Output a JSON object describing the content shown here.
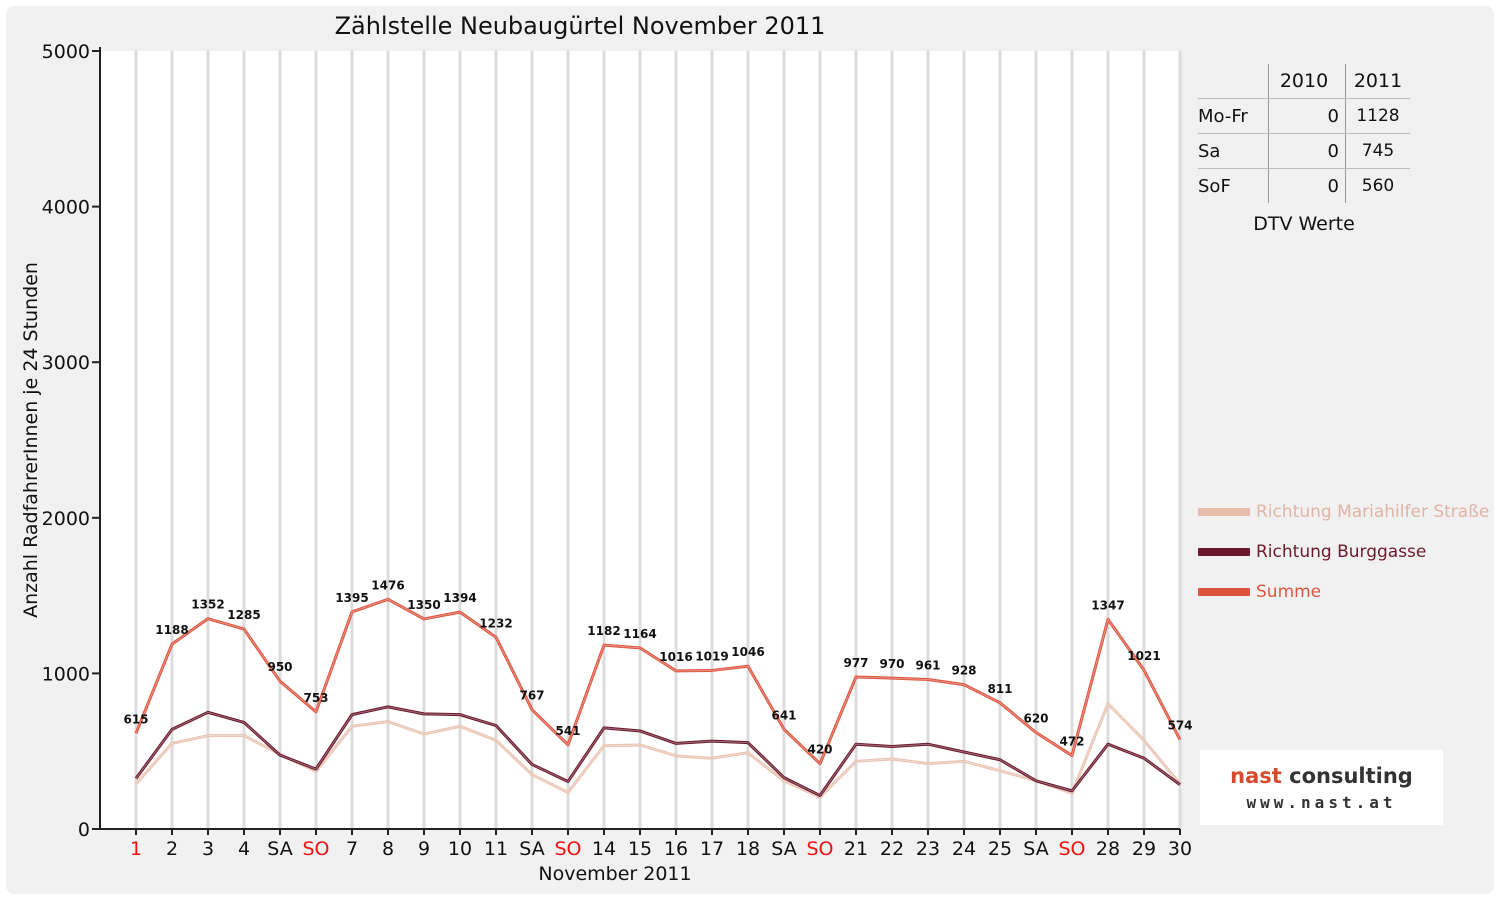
{
  "chart_data": {
    "type": "line",
    "title": "Zählstelle Neubaugürtel November 2011",
    "xlabel": "November 2011",
    "ylabel": "Anzahl RadfahrerInnen je 24 Stunden",
    "ylim": [
      0,
      5000
    ],
    "yticks": [
      "0",
      "1000",
      "2000",
      "3000",
      "4000",
      "5000"
    ],
    "grid": true,
    "legend_position": "right",
    "categories": [
      "1",
      "2",
      "3",
      "4",
      "SA",
      "SO",
      "7",
      "8",
      "9",
      "10",
      "11",
      "SA",
      "SO",
      "14",
      "15",
      "16",
      "17",
      "18",
      "SA",
      "SO",
      "21",
      "22",
      "23",
      "24",
      "25",
      "SA",
      "SO",
      "28",
      "29",
      "30"
    ],
    "red_categories": [
      "1",
      "SO"
    ],
    "series": [
      {
        "name": "Richtung Mariahilfer Straße",
        "color": "#e8bcaa",
        "values": [
          290,
          550,
          600,
          600,
          480,
          370,
          660,
          690,
          610,
          660,
          570,
          350,
          235,
          535,
          540,
          470,
          455,
          490,
          310,
          205,
          435,
          450,
          420,
          435,
          375,
          310,
          230,
          805,
          570,
          290
        ]
      },
      {
        "name": "Richtung Burggasse",
        "color": "#6b1a2e",
        "values": [
          325,
          640,
          750,
          685,
          475,
          385,
          735,
          785,
          740,
          735,
          665,
          415,
          305,
          650,
          630,
          550,
          565,
          555,
          330,
          215,
          545,
          530,
          545,
          495,
          445,
          310,
          245,
          545,
          455,
          285
        ]
      },
      {
        "name": "Summe",
        "color": "#dd5540",
        "values": [
          615,
          1188,
          1352,
          1285,
          950,
          753,
          1395,
          1476,
          1350,
          1394,
          1232,
          767,
          541,
          1182,
          1164,
          1016,
          1019,
          1046,
          641,
          420,
          977,
          970,
          961,
          928,
          811,
          620,
          472,
          1347,
          1021,
          574
        ]
      }
    ]
  },
  "dtv_table": {
    "caption": "DTV Werte",
    "headers": [
      "2010",
      "2011"
    ],
    "rows": [
      {
        "label": "Mo-Fr",
        "v2010": "0",
        "v2011": "1128"
      },
      {
        "label": "Sa",
        "v2010": "0",
        "v2011": "745"
      },
      {
        "label": "SoF",
        "v2010": "0",
        "v2011": "560"
      }
    ]
  },
  "logo": {
    "line1_a": "nast",
    "line1_b": " consulting",
    "line2": "www.nast.at"
  }
}
